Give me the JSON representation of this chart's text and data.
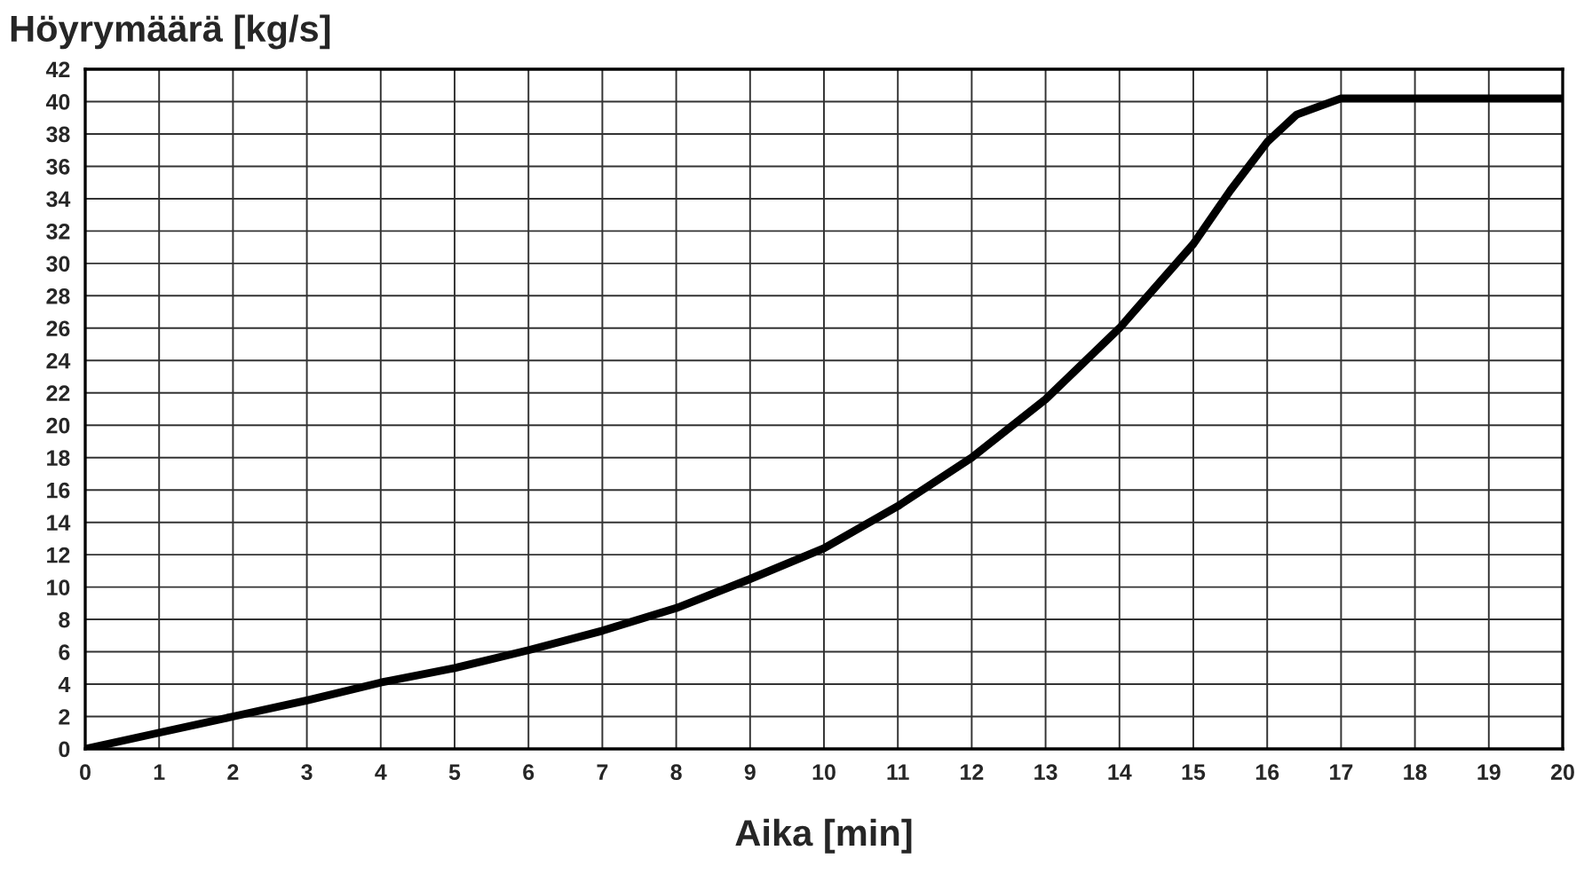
{
  "chart_data": {
    "type": "line",
    "ylabel": "Höyrymäärä [kg/s]",
    "xlabel": "Aika [min]",
    "x": [
      0,
      1,
      2,
      3,
      4,
      5,
      6,
      7,
      8,
      9,
      10,
      11,
      12,
      13,
      14,
      15,
      15.5,
      16,
      16.4,
      17,
      20
    ],
    "series": [
      {
        "color": "#000000",
        "values": [
          0,
          1,
          2,
          3,
          4.1,
          5,
          6.1,
          7.3,
          8.7,
          10.5,
          12.4,
          15,
          18,
          21.6,
          26,
          31.2,
          34.5,
          37.5,
          39.2,
          40.2,
          40.2
        ]
      }
    ],
    "xlim": [
      0,
      20
    ],
    "ylim": [
      0,
      42
    ],
    "xticks": [
      0,
      1,
      2,
      3,
      4,
      5,
      6,
      7,
      8,
      9,
      10,
      11,
      12,
      13,
      14,
      15,
      16,
      17,
      18,
      19,
      20
    ],
    "yticks": [
      0,
      2,
      4,
      6,
      8,
      10,
      12,
      14,
      16,
      18,
      20,
      22,
      24,
      26,
      28,
      30,
      32,
      34,
      36,
      38,
      40,
      42
    ],
    "grid": true,
    "marker": "none",
    "line_style": "solid"
  }
}
